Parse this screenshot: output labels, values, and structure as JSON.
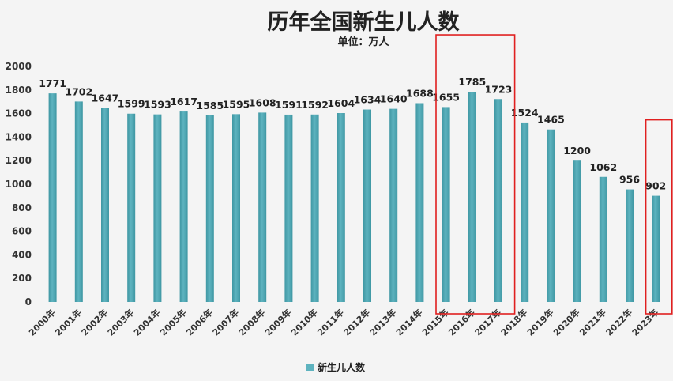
{
  "chart_data": {
    "type": "bar",
    "title": "历年全国新生儿人数",
    "subtitle": "单位：万人",
    "categories": [
      "2000年",
      "2001年",
      "2002年",
      "2003年",
      "2004年",
      "2005年",
      "2006年",
      "2007年",
      "2008年",
      "2009年",
      "2010年",
      "2011年",
      "2012年",
      "2013年",
      "2014年",
      "2015年",
      "2016年",
      "2017年",
      "2018年",
      "2019年",
      "2020年",
      "2021年",
      "2022年",
      "2023年"
    ],
    "series": [
      {
        "name": "新生儿人数",
        "values": [
          1771,
          1702,
          1647,
          1599,
          1593,
          1617,
          1585,
          1595,
          1608,
          1591,
          1592,
          1604,
          1634,
          1640,
          1688,
          1655,
          1785,
          1723,
          1524,
          1465,
          1200,
          1062,
          956,
          902
        ]
      }
    ],
    "ylim": [
      0,
      2000
    ],
    "yticks": [
      "0",
      "200",
      "400",
      "600",
      "800",
      "1000",
      "1200",
      "1400",
      "1600",
      "1800",
      "2000"
    ],
    "grid": false,
    "legend_position": "bottom",
    "colors": {
      "bar": "#5eb3bf",
      "bar_dark": "#3f97a3",
      "highlight_box": "#e02020"
    },
    "highlights": [
      {
        "from": "2015年",
        "to": "2017年"
      },
      {
        "from": "2023年",
        "to": "2023年"
      }
    ]
  }
}
